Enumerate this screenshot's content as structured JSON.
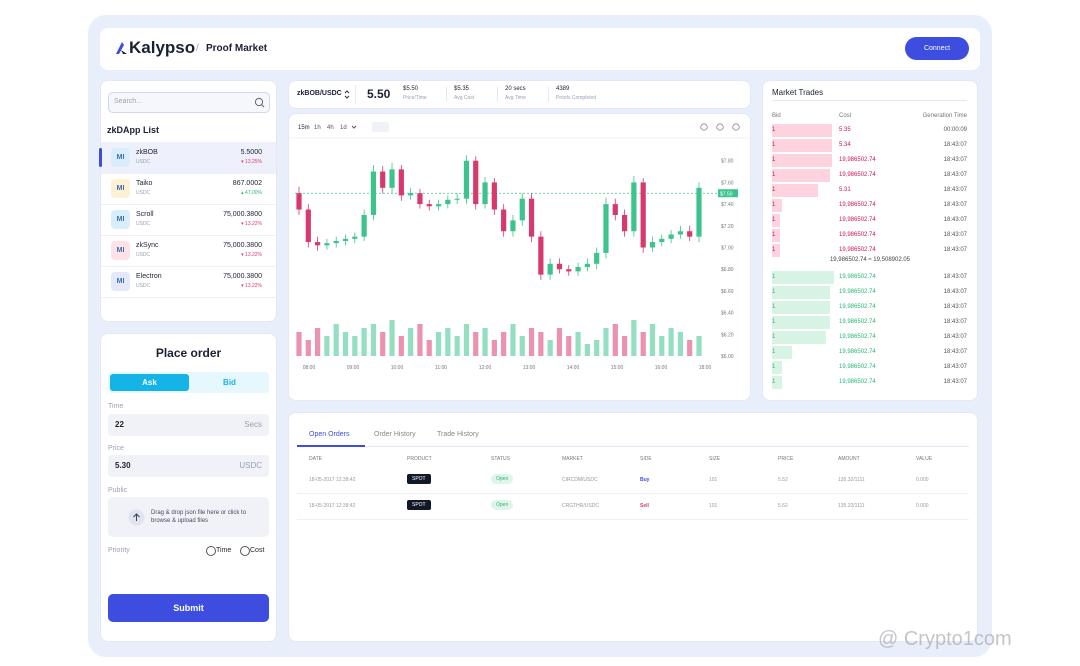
{
  "header": {
    "brand": "Kalypso",
    "separator": "/",
    "page": "Proof Market",
    "connect": "Connect"
  },
  "search": {
    "placeholder": "Search..."
  },
  "zkdapp_list": {
    "title": "zkDApp List",
    "items": [
      {
        "icon": "MI",
        "name": "zkBOB",
        "quote": "USDC",
        "price": "5.5000",
        "change": "▾ 13.25%",
        "direction": "down"
      },
      {
        "icon": "MI",
        "name": "Taiko",
        "quote": "USDC",
        "price": "867.0002",
        "change": "▴ 47.00%",
        "direction": "up"
      },
      {
        "icon": "MI",
        "name": "Scroll",
        "quote": "USDC",
        "price": "75,000.3800",
        "change": "▾ 13.22%",
        "direction": "down"
      },
      {
        "icon": "MI",
        "name": "zkSync",
        "quote": "USDC",
        "price": "75,000.3800",
        "change": "▾ 13.22%",
        "direction": "down"
      },
      {
        "icon": "MI",
        "name": "Electron",
        "quote": "USDC",
        "price": "75,000.3800",
        "change": "▾ 13.22%",
        "direction": "down"
      }
    ]
  },
  "place_order": {
    "title": "Place order",
    "tabs": [
      "Ask",
      "Bid"
    ],
    "time_label": "Time",
    "time_value": "22",
    "time_unit": "Secs",
    "price_label": "Price",
    "price_value": "5.30",
    "price_unit": "USDC",
    "public_label": "Public",
    "upload_text": "Drag & drop json file here or click to browse & upload files",
    "priority_label": "Priority",
    "priority_options": [
      "Time",
      "Cost"
    ],
    "submit": "Submit"
  },
  "ticker": {
    "pair": "zkBOB/USDC",
    "price": "5.50",
    "stats": [
      {
        "value": "$5.50",
        "label": "Price/Time"
      },
      {
        "value": "$5.35",
        "label": "Avg Cost"
      },
      {
        "value": "20 secs",
        "label": "Avg Time"
      },
      {
        "value": "4389",
        "label": "Proofs Completed"
      }
    ]
  },
  "price_chart": {
    "type": "candlestick",
    "intervals": [
      "15m",
      "1h",
      "4h",
      "1d"
    ],
    "up_color": "#3cc48c",
    "down_color": "#d8396d",
    "open": [
      7.5,
      7.35,
      7.05,
      7.02,
      7.04,
      7.06,
      7.08,
      7.1,
      7.3,
      7.7,
      7.55,
      7.72,
      7.48,
      7.5,
      7.4,
      7.38,
      7.4,
      7.44,
      7.45,
      7.8,
      7.4,
      7.6,
      7.35,
      7.15,
      7.25,
      7.45,
      7.1,
      6.75,
      6.85,
      6.8,
      6.78,
      6.82,
      6.85,
      6.95,
      7.4,
      7.3,
      7.15,
      7.6,
      7.0,
      7.05,
      7.08,
      7.12,
      7.15,
      7.1
    ],
    "high": [
      7.56,
      7.4,
      7.1,
      7.08,
      7.1,
      7.12,
      7.14,
      7.35,
      7.76,
      7.75,
      7.78,
      7.76,
      7.55,
      7.54,
      7.44,
      7.44,
      7.48,
      7.5,
      7.85,
      7.84,
      7.65,
      7.64,
      7.4,
      7.3,
      7.5,
      7.5,
      7.15,
      6.9,
      6.9,
      6.84,
      6.86,
      6.9,
      7.0,
      7.46,
      7.45,
      7.35,
      7.66,
      7.64,
      7.1,
      7.12,
      7.16,
      7.2,
      7.2,
      7.6
    ],
    "low": [
      7.3,
      7.0,
      6.97,
      6.98,
      7.0,
      7.02,
      7.04,
      7.06,
      7.25,
      7.5,
      7.5,
      7.43,
      7.44,
      7.36,
      7.34,
      7.34,
      7.36,
      7.4,
      7.4,
      7.35,
      7.36,
      7.3,
      7.1,
      7.1,
      7.2,
      7.05,
      6.7,
      6.7,
      6.76,
      6.74,
      6.74,
      6.78,
      6.8,
      6.9,
      7.25,
      7.1,
      7.1,
      6.95,
      6.96,
      7.01,
      7.04,
      7.08,
      7.06,
      7.05
    ],
    "close": [
      7.35,
      7.05,
      7.02,
      7.04,
      7.06,
      7.08,
      7.1,
      7.3,
      7.7,
      7.55,
      7.72,
      7.48,
      7.5,
      7.4,
      7.38,
      7.4,
      7.44,
      7.45,
      7.8,
      7.4,
      7.6,
      7.35,
      7.15,
      7.25,
      7.45,
      7.1,
      6.75,
      6.85,
      6.8,
      6.78,
      6.82,
      6.85,
      6.95,
      7.4,
      7.3,
      7.15,
      7.6,
      7.0,
      7.05,
      7.08,
      7.12,
      7.15,
      7.1,
      7.55
    ],
    "volume": [
      6,
      4,
      7,
      5,
      8,
      6,
      5,
      7,
      8,
      6,
      9,
      5,
      7,
      8,
      4,
      6,
      7,
      5,
      8,
      6,
      7,
      4,
      6,
      8,
      5,
      7,
      6,
      4,
      7,
      5,
      6,
      3,
      4,
      7,
      8,
      5,
      9,
      6,
      8,
      5,
      7,
      6,
      4,
      5
    ],
    "ylim": [
      6.0,
      8.0
    ],
    "yticks": [
      {
        "value": 7.8,
        "label": "$7.80"
      },
      {
        "value": 7.6,
        "label": "$7.60"
      },
      {
        "value": 7.4,
        "label": "$7.40"
      },
      {
        "value": 7.2,
        "label": "$7.20"
      },
      {
        "value": 7.0,
        "label": "$7.00"
      },
      {
        "value": 6.8,
        "label": "$6.80"
      },
      {
        "value": 6.6,
        "label": "$6.60"
      },
      {
        "value": 6.4,
        "label": "$6.40"
      },
      {
        "value": 6.2,
        "label": "$6.20"
      },
      {
        "value": 6.0,
        "label": "$6.00"
      }
    ],
    "current_price": {
      "value": 7.5,
      "label": "$7.50"
    },
    "xticks": [
      "08:00",
      "09:00",
      "10:00",
      "11:00",
      "12:00",
      "13:00",
      "14:00",
      "15:00",
      "16:00",
      "18:00"
    ]
  },
  "market_trades": {
    "title": "Market Trades",
    "columns": [
      "Bid",
      "Cost",
      "Generation Time"
    ],
    "asks": [
      {
        "bid": "1",
        "cost": "5.35",
        "time": "00:00:09",
        "depth": 60
      },
      {
        "bid": "1",
        "cost": "5.34",
        "time": "18:43:07",
        "depth": 60
      },
      {
        "bid": "1",
        "cost": "19,986502.74",
        "time": "18:43:07",
        "depth": 60
      },
      {
        "bid": "1",
        "cost": "19,986502.74",
        "time": "18:43:07",
        "depth": 58
      },
      {
        "bid": "1",
        "cost": "5.31",
        "time": "18:43:07",
        "depth": 46
      },
      {
        "bid": "1",
        "cost": "19,986502.74",
        "time": "18:43:07",
        "depth": 10
      },
      {
        "bid": "1",
        "cost": "19,986502.74",
        "time": "18:43:07",
        "depth": 8
      },
      {
        "bid": "1",
        "cost": "19,986502.74",
        "time": "18:43:07",
        "depth": 8
      },
      {
        "bid": "1",
        "cost": "19,986502.74",
        "time": "18:43:07",
        "depth": 8
      }
    ],
    "spread": "19,986502.74 ≈ 19,508902.05",
    "bids": [
      {
        "bid": "1",
        "cost": "19,986502.74",
        "time": "18:43:07",
        "depth": 62
      },
      {
        "bid": "1",
        "cost": "19,986502.74",
        "time": "18:43:07",
        "depth": 58
      },
      {
        "bid": "1",
        "cost": "19,986502.74",
        "time": "18:43:07",
        "depth": 58
      },
      {
        "bid": "1",
        "cost": "19,986502.74",
        "time": "18:43:07",
        "depth": 58
      },
      {
        "bid": "1",
        "cost": "19,986502.74",
        "time": "18:43:07",
        "depth": 54
      },
      {
        "bid": "1",
        "cost": "19,986502.74",
        "time": "18:43:07",
        "depth": 20
      },
      {
        "bid": "1",
        "cost": "19,986502.74",
        "time": "18:43:07",
        "depth": 10
      },
      {
        "bid": "1",
        "cost": "19,986502.74",
        "time": "18:43:07",
        "depth": 10
      }
    ]
  },
  "orders": {
    "tabs": [
      "Open Orders",
      "Order History",
      "Trade History"
    ],
    "columns": [
      "DATE",
      "PRODUCT",
      "STATUS",
      "MARKET",
      "SIDE",
      "SIZE",
      "PRICE",
      "AMOUNT",
      "VALUE"
    ],
    "rows": [
      [
        "18-05-2017 12:38:42",
        "SPOT",
        "Open",
        "CIRCDM/USDC",
        "Buy",
        "101",
        "5.52",
        "135.32/1111",
        "0.000"
      ],
      [
        "18-05-2017 12:38:42",
        "SPOT",
        "Open",
        "CRGTHR/USDC",
        "Sell",
        "101",
        "5.52",
        "135.32/1111",
        "0.000"
      ]
    ]
  },
  "watermark": "@ Crypto1com"
}
